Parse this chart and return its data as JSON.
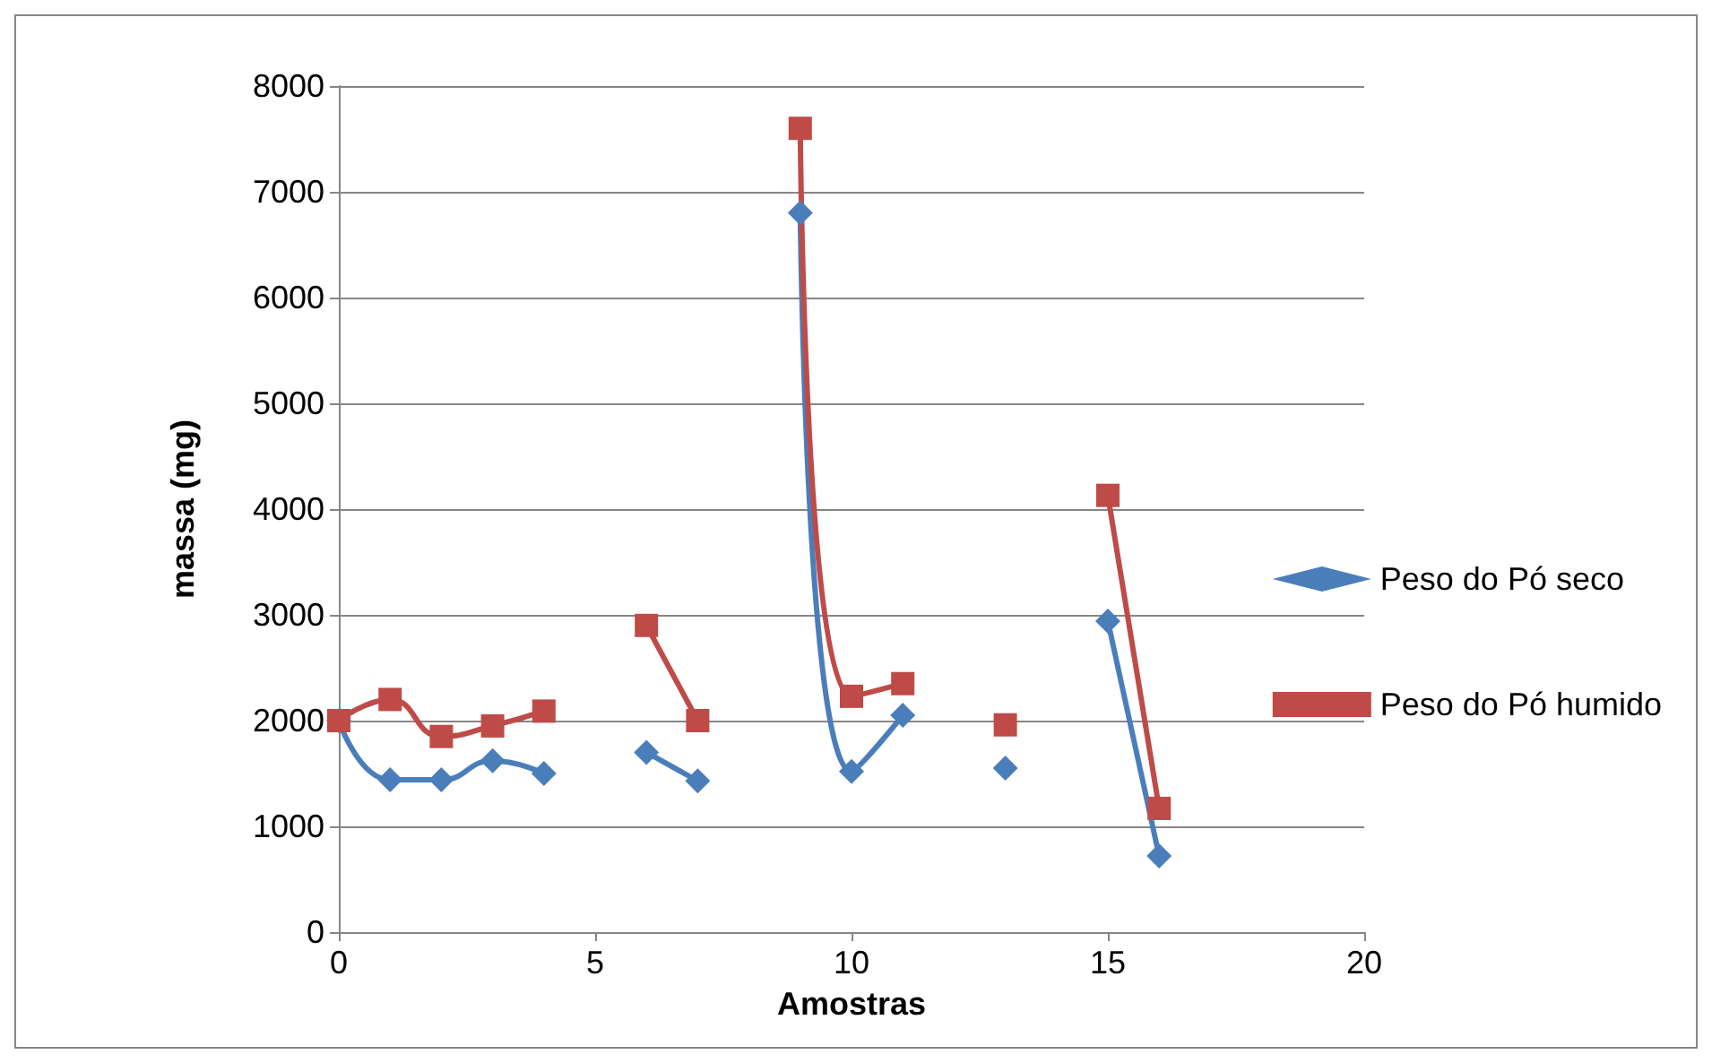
{
  "chart_data": {
    "type": "line",
    "xlabel": "Amostras",
    "ylabel": "massa (mg)",
    "x": [
      0,
      1,
      2,
      3,
      4,
      5,
      6,
      7,
      8,
      9,
      10,
      11,
      12,
      13,
      14,
      15,
      16
    ],
    "series": [
      {
        "name": "Peso do Pó seco",
        "color": "#4a7ebb",
        "marker": "diamond",
        "values": [
          2000,
          1440,
          1440,
          1620,
          1500,
          null,
          1700,
          1430,
          null,
          6800,
          1520,
          2050,
          null,
          1550,
          null,
          2940,
          720
        ]
      },
      {
        "name": "Peso do Pó humido",
        "color": "#be4b48",
        "marker": "square",
        "values": [
          2000,
          2200,
          1850,
          1950,
          2090,
          null,
          2900,
          2000,
          null,
          7600,
          2230,
          2350,
          null,
          1960,
          null,
          4130,
          1170
        ]
      }
    ],
    "xlim": [
      0,
      20
    ],
    "xticks": [
      0,
      5,
      10,
      15,
      20
    ],
    "ylim": [
      0,
      8000
    ],
    "yticks": [
      0,
      1000,
      2000,
      3000,
      4000,
      5000,
      6000,
      7000,
      8000
    ],
    "grid": "y",
    "legend": "right",
    "line_style": "solid"
  }
}
